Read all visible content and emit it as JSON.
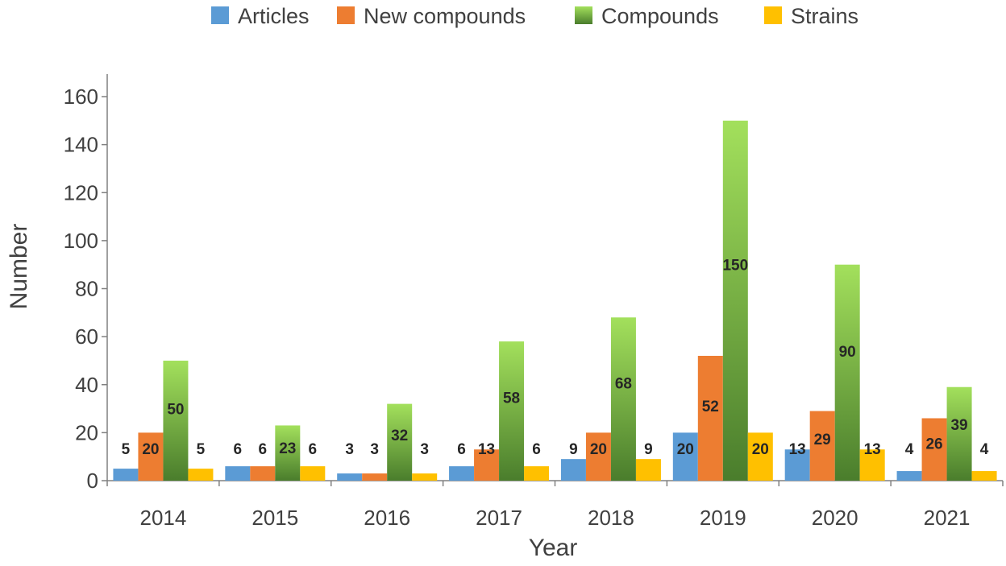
{
  "chart_data": {
    "type": "bar",
    "title": "",
    "xlabel": "Year",
    "ylabel": "Number",
    "ylim": [
      0,
      170
    ],
    "yticks": [
      0,
      20,
      40,
      60,
      80,
      100,
      120,
      140,
      160
    ],
    "grid": false,
    "legend_position": "top-center",
    "categories": [
      "2014",
      "2015",
      "2016",
      "2017",
      "2018",
      "2019",
      "2020",
      "2021"
    ],
    "series": [
      {
        "name": "Articles",
        "color": "#5b9bd5",
        "values": [
          5,
          6,
          3,
          6,
          9,
          20,
          13,
          4
        ]
      },
      {
        "name": "New compounds",
        "color": "#ed7d31",
        "values": [
          20,
          6,
          3,
          13,
          20,
          52,
          29,
          26
        ]
      },
      {
        "name": "Compounds",
        "color": "#92d050",
        "gradient": [
          "#a3e05c",
          "#4a7d2c"
        ],
        "values": [
          50,
          23,
          32,
          58,
          68,
          150,
          90,
          39
        ]
      },
      {
        "name": "Strains",
        "color": "#ffc000",
        "values": [
          5,
          6,
          3,
          6,
          9,
          20,
          13,
          4
        ]
      }
    ]
  }
}
